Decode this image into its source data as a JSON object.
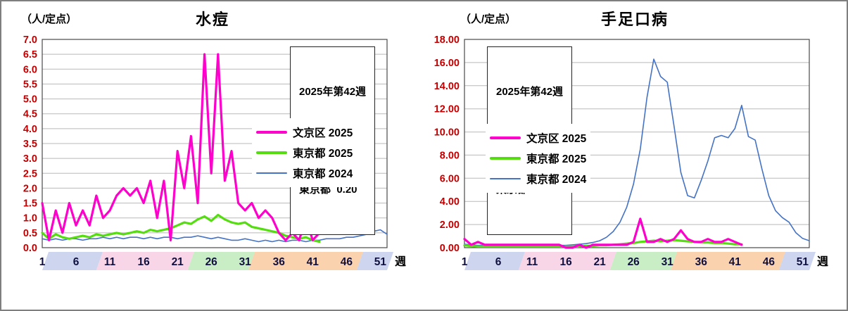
{
  "charts": [
    {
      "title": "水痘",
      "unit_label": "（人/定点）",
      "info_box": [
        "2025年第42週",
        "文京区  0.50",
        "東京都  0.20"
      ],
      "legend": [
        {
          "label": "文京区 2025",
          "color": "#ff00cc",
          "thickness": 4
        },
        {
          "label": "東京都 2025",
          "color": "#55dd11",
          "thickness": 4
        },
        {
          "label": "東京都 2024",
          "color": "#4472c4",
          "thickness": 2
        }
      ]
    },
    {
      "title": "手足口病",
      "unit_label": "（人/定点）",
      "info_box": [
        "2025年第42週",
        "文京区  0.25",
        "東京都  0.29"
      ],
      "legend": [
        {
          "label": "文京区 2025",
          "color": "#ff00cc",
          "thickness": 4
        },
        {
          "label": "東京都 2025",
          "color": "#55dd11",
          "thickness": 4
        },
        {
          "label": "東京都 2024",
          "color": "#4472c4",
          "thickness": 2
        }
      ]
    }
  ],
  "chart_data": [
    {
      "type": "line",
      "title": "水痘",
      "ylabel": "（人/定点）",
      "xlabel": "週",
      "ylim": [
        0,
        7
      ],
      "ytick_labels": [
        "0.0",
        "0.5",
        "1.0",
        "1.5",
        "2.0",
        "2.5",
        "3.0",
        "3.5",
        "4.0",
        "4.5",
        "5.0",
        "5.5",
        "6.0",
        "6.5",
        "7.0"
      ],
      "xticks": [
        1,
        6,
        11,
        16,
        21,
        26,
        31,
        36,
        41,
        46,
        51
      ],
      "weeks": 52,
      "grid": true,
      "legend_position": "inside-right",
      "series": [
        {
          "name": "文京区 2025",
          "key": "bunkyoku-2025",
          "color": "#ff00cc",
          "width": 3.2,
          "values": [
            1.5,
            0.25,
            1.25,
            0.5,
            1.5,
            0.75,
            1.25,
            0.75,
            1.75,
            1.0,
            1.25,
            1.75,
            2.0,
            1.75,
            2.0,
            1.5,
            2.25,
            1.0,
            2.25,
            0.25,
            3.25,
            2.0,
            3.75,
            1.5,
            6.5,
            2.5,
            6.5,
            2.25,
            3.25,
            1.5,
            1.25,
            1.5,
            1.0,
            1.25,
            1.0,
            0.5,
            0.25,
            0.5,
            0.25,
            1.0,
            0.25,
            0.5
          ]
        },
        {
          "name": "東京都 2025",
          "key": "tokyo-2025",
          "color": "#55dd11",
          "width": 3.2,
          "values": [
            0.5,
            0.3,
            0.45,
            0.35,
            0.3,
            0.35,
            0.4,
            0.35,
            0.45,
            0.4,
            0.45,
            0.5,
            0.45,
            0.5,
            0.55,
            0.5,
            0.6,
            0.55,
            0.6,
            0.65,
            0.75,
            0.85,
            0.8,
            0.95,
            1.05,
            0.9,
            1.1,
            0.95,
            0.85,
            0.8,
            0.85,
            0.7,
            0.65,
            0.6,
            0.55,
            0.5,
            0.4,
            0.35,
            0.3,
            0.35,
            0.25,
            0.2
          ]
        },
        {
          "name": "東京都 2024",
          "key": "tokyo-2024",
          "color": "#4472c4",
          "width": 1.6,
          "values": [
            0.3,
            0.25,
            0.3,
            0.25,
            0.3,
            0.3,
            0.25,
            0.3,
            0.3,
            0.35,
            0.3,
            0.35,
            0.3,
            0.35,
            0.35,
            0.3,
            0.35,
            0.3,
            0.35,
            0.35,
            0.3,
            0.35,
            0.35,
            0.4,
            0.35,
            0.3,
            0.35,
            0.3,
            0.25,
            0.25,
            0.3,
            0.25,
            0.2,
            0.25,
            0.2,
            0.25,
            0.2,
            0.25,
            0.25,
            0.2,
            0.25,
            0.25,
            0.3,
            0.3,
            0.3,
            0.35,
            0.35,
            0.4,
            0.45,
            0.55,
            0.6,
            0.45
          ]
        }
      ],
      "season_bands": [
        {
          "from": 1,
          "to": 9,
          "color": "#cdd5ef"
        },
        {
          "from": 9,
          "to": 22.5,
          "color": "#f9d6e7"
        },
        {
          "from": 22.5,
          "to": 31.5,
          "color": "#c9eec5"
        },
        {
          "from": 31.5,
          "to": 47.5,
          "color": "#fad2ad"
        },
        {
          "from": 47.5,
          "to": 52,
          "color": "#cdd5ef"
        }
      ]
    },
    {
      "type": "line",
      "title": "手足口病",
      "ylabel": "（人/定点）",
      "xlabel": "週",
      "ylim": [
        0,
        18
      ],
      "ytick_labels": [
        "0.00",
        "2.00",
        "4.00",
        "6.00",
        "8.00",
        "10.00",
        "12.00",
        "14.00",
        "16.00",
        "18.00"
      ],
      "xticks": [
        1,
        6,
        11,
        16,
        21,
        26,
        31,
        36,
        41,
        46,
        51
      ],
      "weeks": 52,
      "grid": true,
      "legend_position": "inside-left",
      "series": [
        {
          "name": "文京区 2025",
          "key": "bunkyoku-2025",
          "color": "#ff00cc",
          "width": 3.2,
          "values": [
            0.75,
            0.25,
            0.5,
            0.25,
            0.25,
            0.25,
            0.25,
            0.25,
            0.25,
            0.25,
            0.25,
            0.25,
            0.25,
            0.25,
            0.25,
            0.0,
            0.0,
            0.25,
            0.0,
            0.25,
            0.25,
            0.25,
            0.25,
            0.25,
            0.25,
            0.5,
            2.5,
            0.5,
            0.5,
            0.75,
            0.5,
            0.75,
            1.5,
            0.75,
            0.5,
            0.5,
            0.75,
            0.5,
            0.5,
            0.75,
            0.5,
            0.25
          ]
        },
        {
          "name": "東京都 2025",
          "key": "tokyo-2025",
          "color": "#55dd11",
          "width": 3.2,
          "values": [
            0.2,
            0.15,
            0.1,
            0.1,
            0.1,
            0.1,
            0.1,
            0.1,
            0.1,
            0.1,
            0.1,
            0.1,
            0.1,
            0.1,
            0.1,
            0.1,
            0.1,
            0.1,
            0.15,
            0.15,
            0.2,
            0.2,
            0.25,
            0.3,
            0.35,
            0.4,
            0.5,
            0.55,
            0.6,
            0.55,
            0.6,
            0.65,
            0.6,
            0.55,
            0.5,
            0.45,
            0.45,
            0.4,
            0.4,
            0.35,
            0.3,
            0.29
          ]
        },
        {
          "name": "東京都 2024",
          "key": "tokyo-2024",
          "color": "#4472c4",
          "width": 1.6,
          "values": [
            0.3,
            0.25,
            0.2,
            0.2,
            0.15,
            0.15,
            0.15,
            0.1,
            0.1,
            0.1,
            0.1,
            0.1,
            0.15,
            0.15,
            0.2,
            0.2,
            0.25,
            0.3,
            0.35,
            0.45,
            0.6,
            0.9,
            1.4,
            2.2,
            3.5,
            5.5,
            8.5,
            13.0,
            16.3,
            14.8,
            14.3,
            10.5,
            6.5,
            4.5,
            4.3,
            5.8,
            7.5,
            9.5,
            9.7,
            9.5,
            10.3,
            12.3,
            9.6,
            9.3,
            6.8,
            4.5,
            3.2,
            2.6,
            2.2,
            1.3,
            0.8,
            0.6
          ]
        }
      ],
      "season_bands": [
        {
          "from": 1,
          "to": 9,
          "color": "#cdd5ef"
        },
        {
          "from": 9,
          "to": 22.5,
          "color": "#f9d6e7"
        },
        {
          "from": 22.5,
          "to": 31.5,
          "color": "#c9eec5"
        },
        {
          "from": 31.5,
          "to": 47.5,
          "color": "#fad2ad"
        },
        {
          "from": 47.5,
          "to": 52,
          "color": "#cdd5ef"
        }
      ]
    }
  ]
}
